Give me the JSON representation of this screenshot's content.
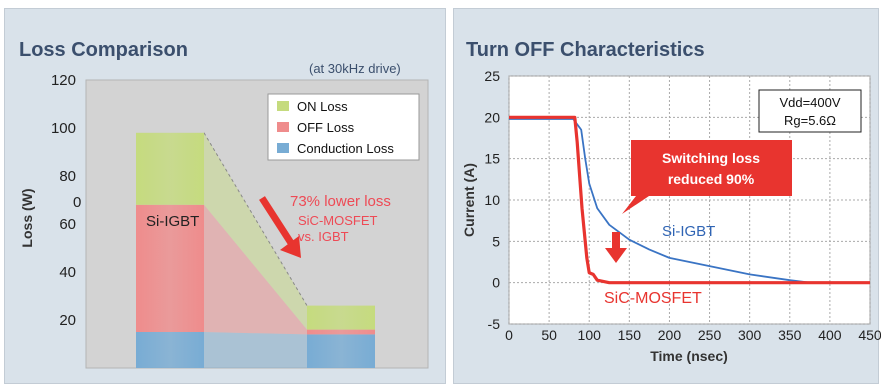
{
  "loss_chart": {
    "title": "Loss Comparison",
    "subtitle": "(at 30kHz drive)",
    "ylabel": "Loss (W)",
    "stray_label": "0",
    "annotation_lines": [
      "73% lower loss",
      "SiC-MOSFET",
      "vs. IGBT"
    ],
    "bar_labels": {
      "si_igbt": "Si-IGBT"
    }
  },
  "turnoff_chart": {
    "title": "Turn OFF Characteristics",
    "ylabel": "Current (A)",
    "xlabel": "Time (nsec)",
    "conditions": [
      "Vdd=400V",
      "Rg=5.6Ω"
    ],
    "callout_lines": [
      "Switching loss",
      "reduced 90%"
    ],
    "series_labels": {
      "si_igbt": "Si-IGBT",
      "sic_mosfet": "SiC-MOSFET"
    }
  },
  "chart_data": [
    {
      "type": "bar",
      "stacked": true,
      "categories": [
        "Si-IGBT",
        "SiC-MOSFET"
      ],
      "series": [
        {
          "name": "Conduction Loss",
          "values": [
            15,
            14
          ],
          "color": "#78acd4"
        },
        {
          "name": "OFF Loss",
          "values": [
            53,
            2
          ],
          "color": "#ef8c8c"
        },
        {
          "name": "ON Loss",
          "values": [
            30,
            10
          ],
          "color": "#c5db7e"
        }
      ],
      "ylim": [
        0,
        120
      ],
      "yticks": [
        20,
        40,
        60,
        80,
        100,
        120
      ],
      "legend": "top-right",
      "grid": false
    },
    {
      "type": "line",
      "series": [
        {
          "name": "Si-IGBT",
          "color": "#3a74c4",
          "x": [
            0,
            50,
            80,
            90,
            95,
            100,
            110,
            125,
            150,
            175,
            200,
            250,
            300,
            350,
            375,
            400,
            450
          ],
          "y": [
            19.8,
            19.8,
            19.8,
            18.5,
            15,
            12,
            9,
            7,
            5.2,
            4,
            3,
            2,
            1,
            0.3,
            0,
            0,
            0
          ]
        },
        {
          "name": "SiC-MOSFET",
          "color": "#e8342f",
          "x": [
            0,
            50,
            82,
            85,
            88,
            91,
            94,
            97,
            100,
            105,
            110,
            125,
            150,
            200,
            300,
            450
          ],
          "y": [
            20,
            20,
            20,
            17,
            13,
            9,
            6,
            3,
            1.2,
            1,
            0.3,
            0,
            0,
            0,
            0,
            0
          ]
        }
      ],
      "xlim": [
        0,
        450
      ],
      "ylim": [
        -5,
        25
      ],
      "xticks": [
        0,
        50,
        100,
        150,
        200,
        250,
        300,
        350,
        400,
        450
      ],
      "yticks": [
        -5,
        0,
        5,
        10,
        15,
        20,
        25
      ],
      "grid": true
    }
  ]
}
